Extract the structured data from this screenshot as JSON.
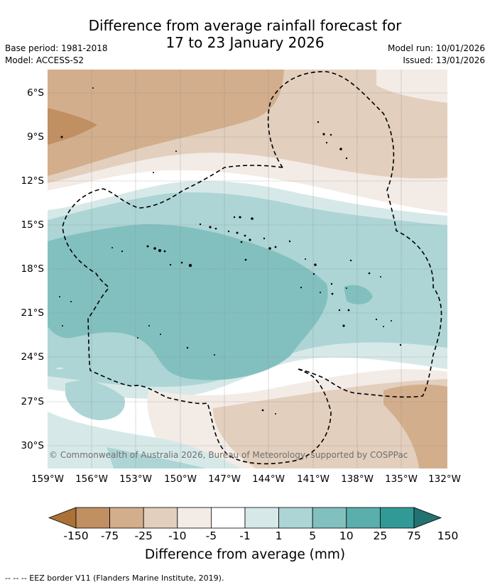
{
  "title": {
    "line1": "Difference from average rainfall forecast for",
    "line2": "17 to 23 January 2026"
  },
  "meta": {
    "base_period": "Base period: 1981-2018",
    "model": "Model: ACCESS-S2",
    "model_run": "Model run: 10/01/2026",
    "issued": "Issued: 13/01/2026"
  },
  "latitude_labels": [
    "6°S",
    "9°S",
    "12°S",
    "15°S",
    "18°S",
    "21°S",
    "24°S",
    "27°S",
    "30°S"
  ],
  "longitude_labels": [
    "159°W",
    "156°W",
    "153°W",
    "150°W",
    "147°W",
    "144°W",
    "141°W",
    "138°W",
    "135°W",
    "132°W"
  ],
  "copyright": "© Commonwealth of Australia 2026, Bureau of Meteorology, supported by COSPPac",
  "colorbar": {
    "labels": [
      "-150",
      "-75",
      "-25",
      "-10",
      "-5",
      "-1",
      "1",
      "5",
      "10",
      "25",
      "75",
      "150"
    ],
    "colors": [
      "#ab7236",
      "#c08f62",
      "#d2ae8c",
      "#e3cfbd",
      "#f3ebe5",
      "#ffffff",
      "#d6e9e8",
      "#add5d5",
      "#82c0bf",
      "#5aaeac",
      "#319a97",
      "#23726f"
    ],
    "title": "Difference from average (mm)"
  },
  "footer": "-- -- -- EEZ border V11 (Flanders Marine Institute, 2019)."
}
